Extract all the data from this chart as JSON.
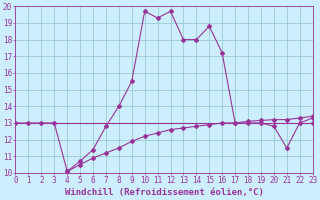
{
  "line1_x": [
    0,
    1,
    2,
    3,
    4,
    5,
    6,
    7,
    8,
    9,
    10,
    11,
    12,
    13,
    14,
    15,
    16,
    17,
    18,
    19,
    20,
    21,
    22,
    23
  ],
  "line1_y": [
    13.0,
    13.0,
    13.0,
    13.0,
    10.1,
    10.7,
    11.4,
    12.8,
    14.0,
    15.5,
    19.7,
    19.3,
    19.7,
    18.0,
    18.0,
    18.8,
    17.2,
    13.0,
    13.0,
    13.0,
    12.8,
    11.5,
    13.0,
    13.3
  ],
  "line2_x": [
    0,
    1,
    2,
    3,
    4,
    5,
    6,
    7,
    8,
    9,
    10,
    11,
    12,
    13,
    14,
    15,
    16,
    17,
    18,
    19,
    20,
    21,
    22,
    23
  ],
  "line2_y": [
    13.0,
    13.0,
    13.0,
    13.0,
    13.0,
    13.0,
    13.0,
    13.0,
    13.0,
    13.0,
    13.0,
    13.0,
    13.0,
    13.0,
    13.0,
    13.0,
    13.0,
    13.0,
    13.0,
    13.0,
    13.0,
    13.0,
    13.0,
    13.0
  ],
  "line3_x": [
    4,
    5,
    6,
    7,
    8,
    9,
    10,
    11,
    12,
    13,
    14,
    15,
    16,
    17,
    18,
    19,
    20,
    21,
    22,
    23
  ],
  "line3_y": [
    10.1,
    10.5,
    10.9,
    11.2,
    11.5,
    11.9,
    12.2,
    12.4,
    12.6,
    12.7,
    12.8,
    12.9,
    13.0,
    13.0,
    13.1,
    13.15,
    13.2,
    13.2,
    13.3,
    13.4
  ],
  "line_color": "#993399",
  "bg_color": "#cceeff",
  "grid_color": "#99cccc",
  "xlabel": "Windchill (Refroidissement éolien,°C)",
  "xlim": [
    0,
    23
  ],
  "ylim": [
    10,
    20
  ],
  "xticks": [
    0,
    1,
    2,
    3,
    4,
    5,
    6,
    7,
    8,
    9,
    10,
    11,
    12,
    13,
    14,
    15,
    16,
    17,
    18,
    19,
    20,
    21,
    22,
    23
  ],
  "yticks": [
    10,
    11,
    12,
    13,
    14,
    15,
    16,
    17,
    18,
    19,
    20
  ],
  "xlabel_fontsize": 6.5,
  "tick_fontsize": 5.5
}
